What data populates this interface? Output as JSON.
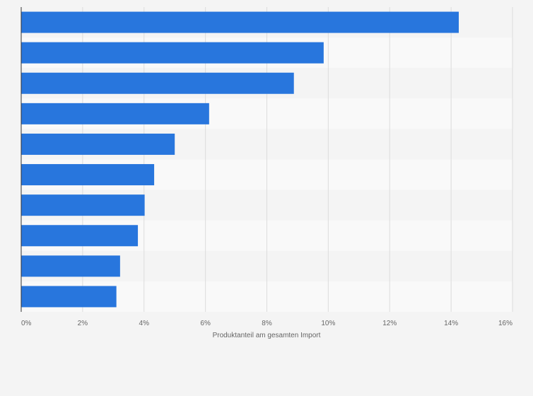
{
  "chart_data": {
    "type": "bar",
    "orientation": "horizontal",
    "categories": [
      "",
      "",
      "",
      "",
      "",
      "",
      "",
      "",
      "",
      ""
    ],
    "values": [
      14.25,
      9.85,
      8.88,
      6.12,
      5.0,
      4.33,
      4.02,
      3.8,
      3.22,
      3.1
    ],
    "xlabel": "Produktanteil am gesamten Import",
    "ylabel": "",
    "xlim": [
      0,
      16
    ],
    "xticks": [
      "0%",
      "2%",
      "4%",
      "6%",
      "8%",
      "10%",
      "12%",
      "14%",
      "16%"
    ],
    "grid": true,
    "legend": "none",
    "colors": {
      "bar": "#2876dd",
      "band_light": "#f9f9f9",
      "band_dark": "#f4f4f4",
      "gridline": "#dcdcdc",
      "axis": "#333333",
      "text": "#666666"
    }
  }
}
